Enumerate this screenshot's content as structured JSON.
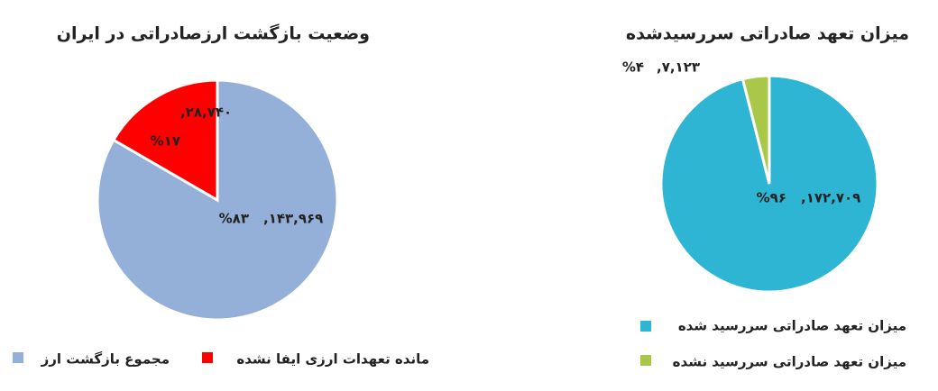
{
  "chart_data": [
    {
      "type": "pie",
      "title": "وضعیت بازگشت ارزصادراتی در ایران",
      "categories": [
        "مجموع بازگشت ارز",
        "مانده تعهدات ارزی ایفا نشده"
      ],
      "values": [
        143969,
        28740
      ],
      "value_labels": [
        ",۱۴۳,۹۶۹",
        ",۲۸,۷۴۰"
      ],
      "percents": [
        83,
        17
      ],
      "percent_labels": [
        "%۸۳",
        "%۱۷"
      ],
      "colors": [
        "#95b0d8",
        "#ff0000"
      ]
    },
    {
      "type": "pie",
      "title": "میزان تعهد صادراتی سررسیدشده",
      "categories": [
        "میزان تعهد صادراتی سررسید شده",
        "میزان تعهد صادراتی سررسید نشده"
      ],
      "values": [
        172709,
        7123
      ],
      "value_labels": [
        ",۱۷۲,۷۰۹",
        ",۷,۱۲۳"
      ],
      "percents": [
        96,
        4
      ],
      "percent_labels": [
        "%۹۶",
        "%۴"
      ],
      "colors": [
        "#2db5d3",
        "#a9c84a"
      ]
    }
  ]
}
